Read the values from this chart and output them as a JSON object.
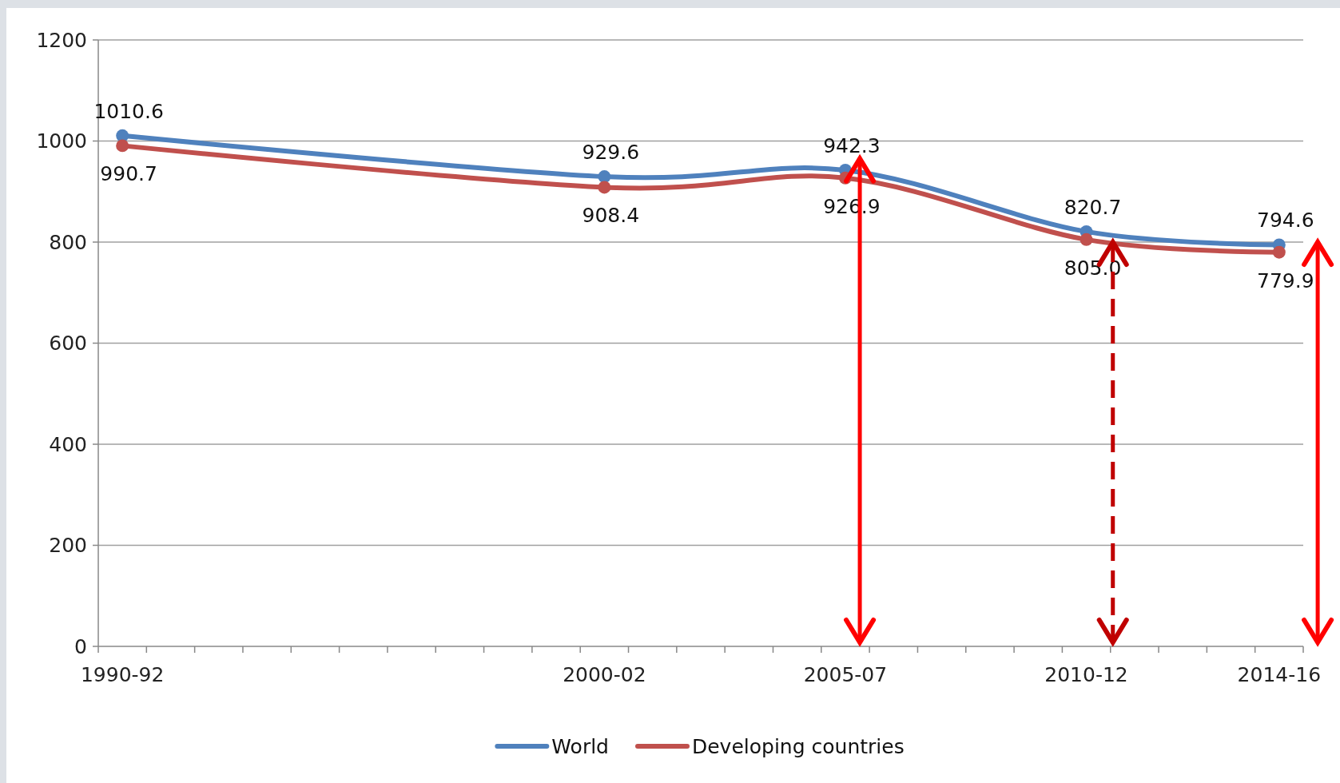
{
  "chart_data": {
    "type": "line",
    "categories": [
      "1990-92",
      null,
      null,
      null,
      null,
      null,
      null,
      null,
      null,
      null,
      "2000-02",
      null,
      null,
      null,
      null,
      "2005-07",
      null,
      null,
      null,
      null,
      "2010-12",
      null,
      null,
      null,
      "2014-16"
    ],
    "ylim": [
      0,
      1200
    ],
    "yticks": [
      0,
      200,
      400,
      600,
      800,
      1000,
      1200
    ],
    "series": [
      {
        "name": "World",
        "color": "#4f81bd",
        "values": [
          1010.6,
          null,
          null,
          null,
          null,
          null,
          null,
          null,
          null,
          null,
          929.6,
          null,
          null,
          null,
          null,
          942.3,
          null,
          null,
          null,
          null,
          820.7,
          null,
          null,
          null,
          794.6
        ]
      },
      {
        "name": "Developing countries",
        "color": "#c0504d",
        "values": [
          990.7,
          null,
          null,
          null,
          null,
          null,
          null,
          null,
          null,
          null,
          908.4,
          null,
          null,
          null,
          null,
          926.9,
          null,
          null,
          null,
          null,
          805.0,
          null,
          null,
          null,
          779.9
        ],
        "value_labels": [
          "990.7",
          null,
          null,
          null,
          null,
          null,
          null,
          null,
          null,
          null,
          "908.4",
          null,
          null,
          null,
          null,
          "926.9",
          null,
          null,
          null,
          null,
          "805.0",
          null,
          null,
          null,
          "779.9"
        ]
      }
    ],
    "data_labels": true,
    "grid": "y",
    "legend": "bottom",
    "marker": "circle",
    "line_style": "solid"
  }
}
